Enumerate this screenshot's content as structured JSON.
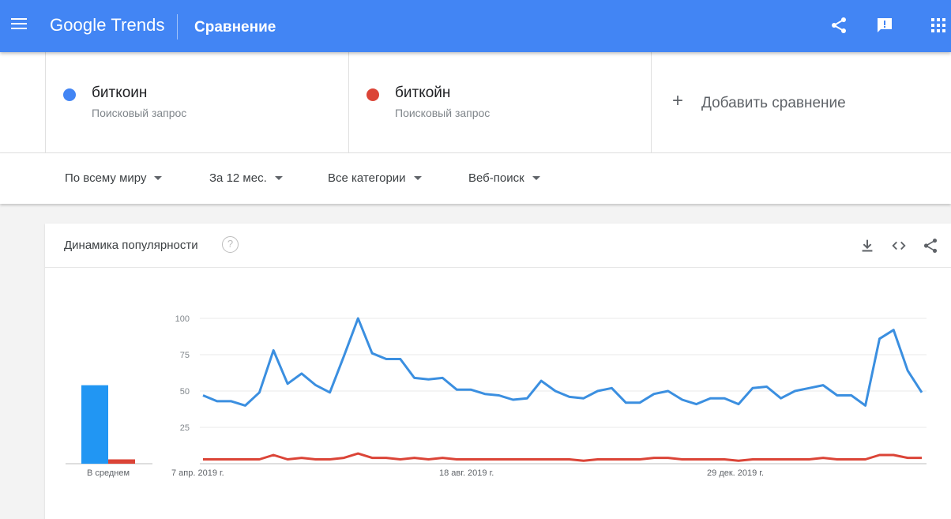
{
  "app": {
    "logo": "Google Trends",
    "page_title": "Сравнение"
  },
  "terms": [
    {
      "name": "биткоин",
      "type": "Поисковый запрос",
      "color": "#4285f4"
    },
    {
      "name": "биткойн",
      "type": "Поисковый запрос",
      "color": "#db4437"
    }
  ],
  "add_comparison": "Добавить сравнение",
  "filters": {
    "region": "По всему миру",
    "period": "За 12 мес.",
    "category": "Все категории",
    "search_type": "Веб-поиск"
  },
  "card": {
    "title": "Динамика популярности",
    "help": "?"
  },
  "chart_data": {
    "type": "line",
    "y_ticks": [
      100,
      75,
      50,
      25
    ],
    "ylim": [
      0,
      100
    ],
    "x_tick_labels": [
      {
        "label": "7 апр. 2019 г.",
        "index": 0
      },
      {
        "label": "18 авг. 2019 г.",
        "index": 19
      },
      {
        "label": "29 дек. 2019 г.",
        "index": 38
      }
    ],
    "series": [
      {
        "name": "биткоин",
        "color": "#4285f4",
        "values": [
          47,
          43,
          43,
          40,
          49,
          78,
          55,
          62,
          54,
          49,
          74,
          100,
          76,
          72,
          72,
          59,
          58,
          59,
          51,
          51,
          48,
          47,
          44,
          45,
          57,
          50,
          46,
          45,
          50,
          52,
          42,
          42,
          48,
          50,
          44,
          41,
          45,
          45,
          41,
          52,
          53,
          45,
          50,
          52,
          54,
          47,
          47,
          40,
          86,
          92,
          64,
          49
        ]
      },
      {
        "name": "биткойн",
        "color": "#db4437",
        "values": [
          3,
          3,
          3,
          3,
          3,
          6,
          3,
          4,
          3,
          3,
          4,
          7,
          4,
          4,
          3,
          4,
          3,
          4,
          3,
          3,
          3,
          3,
          3,
          3,
          3,
          3,
          3,
          2,
          3,
          3,
          3,
          3,
          4,
          4,
          3,
          3,
          3,
          3,
          2,
          3,
          3,
          3,
          3,
          3,
          4,
          3,
          3,
          3,
          6,
          6,
          4,
          4
        ]
      }
    ],
    "average_bars": {
      "label": "В среднем",
      "values": [
        54,
        3
      ]
    }
  }
}
